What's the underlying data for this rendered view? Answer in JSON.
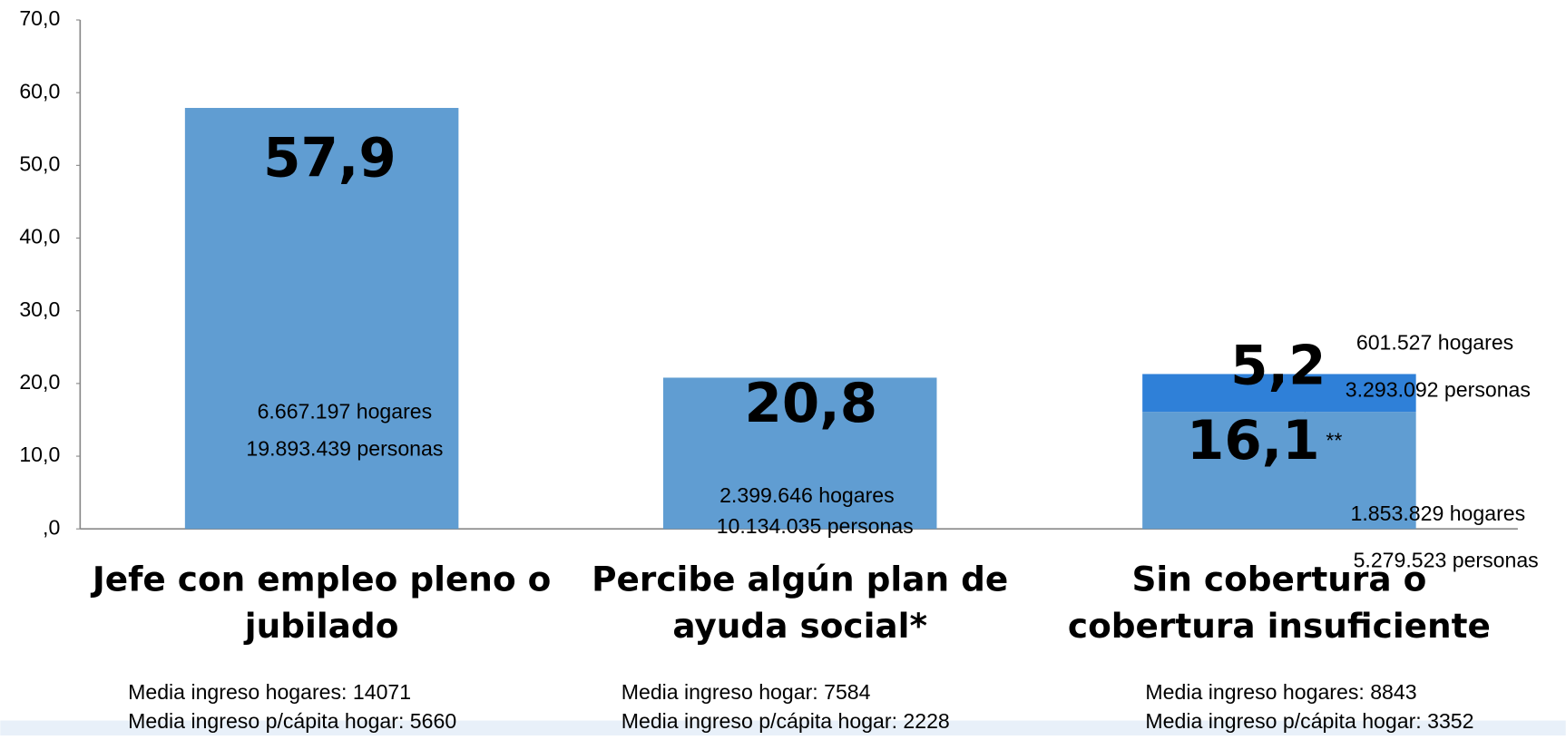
{
  "chart_data": {
    "type": "stacked-bar",
    "categories": [
      "Jefe con empleo pleno o jubilado",
      "Percibe algún plan de ayuda social*",
      "Sin cobertura o cobertura insuficiente"
    ],
    "series": [
      {
        "color": "#609dd2",
        "values": [
          57.9,
          20.8,
          16.1
        ],
        "value_labels": [
          "57,9",
          "20,8",
          "16,1"
        ]
      },
      {
        "color": "#2f80d8",
        "values": [
          null,
          null,
          5.2
        ],
        "value_labels": [
          null,
          null,
          "5,2"
        ]
      }
    ],
    "ylim": [
      0,
      70
    ],
    "yticks": [
      {
        "value": 0,
        "label": ",0"
      },
      {
        "value": 10,
        "label": "10,0"
      },
      {
        "value": 20,
        "label": "20,0"
      },
      {
        "value": 30,
        "label": "30,0"
      },
      {
        "value": 40,
        "label": "40,0"
      },
      {
        "value": 50,
        "label": "50,0"
      },
      {
        "value": 60,
        "label": "60,0"
      },
      {
        "value": 70,
        "label": "70,0"
      }
    ],
    "annotations": [
      "6.667.197 hogares",
      "19.893.439 personas",
      "2.399.646 hogares",
      "10.134.035 personas",
      "601.527 hogares",
      "3.293.092 personas",
      "**",
      "1.853.829 hogares",
      "5.279.523 personas"
    ],
    "footnotes": [
      [
        "Media ingreso hogares: 14071",
        "Media ingreso p/cápita hogar: 5660"
      ],
      [
        "Media ingreso hogar: 7584",
        "Media ingreso p/cápita hogar: 2228"
      ],
      [
        "Media ingreso hogares: 8843",
        "Media ingreso p/cápita hogar: 3352"
      ]
    ]
  }
}
